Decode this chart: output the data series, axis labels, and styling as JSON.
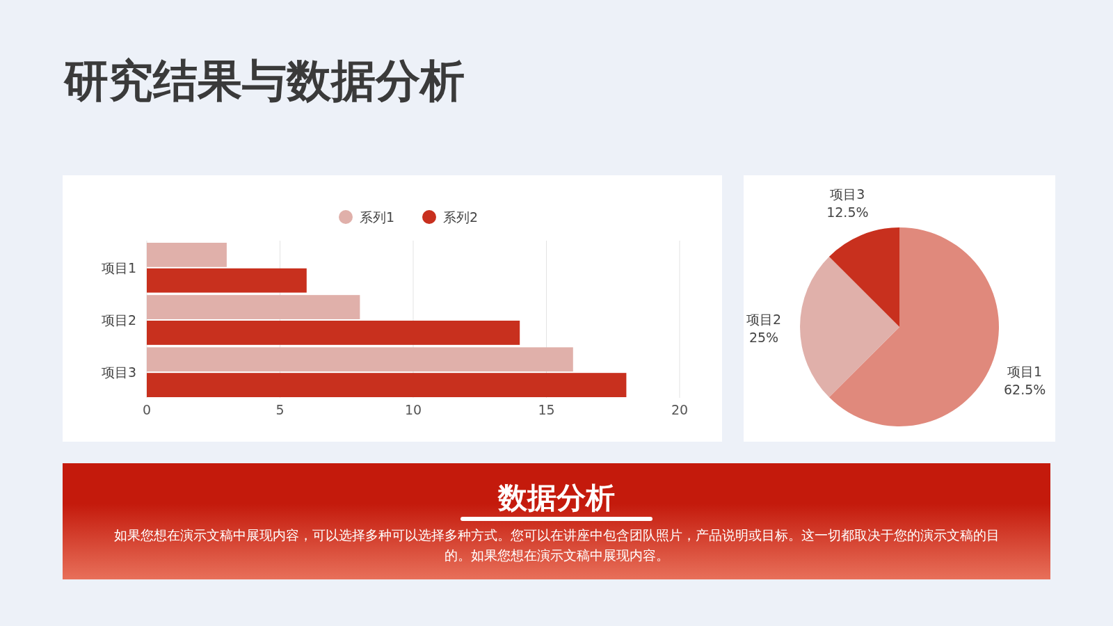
{
  "chart_data": [
    {
      "type": "other",
      "title": "研究结果与数据分析"
    },
    {
      "type": "bar",
      "orientation": "horizontal",
      "categories": [
        "项目1",
        "项目2",
        "项目3"
      ],
      "series": [
        {
          "name": "系列1",
          "color": "#e0b0aa",
          "values": [
            3,
            8,
            16
          ]
        },
        {
          "name": "系列2",
          "color": "#c8301e",
          "values": [
            6,
            14,
            18
          ]
        }
      ],
      "xlim": [
        0,
        20
      ],
      "xticks": [
        0,
        5,
        10,
        15,
        20
      ],
      "grid": "x",
      "legend": "top"
    },
    {
      "type": "pie",
      "categories": [
        "项目1",
        "项目2",
        "项目3"
      ],
      "values": [
        62.5,
        25,
        12.5
      ],
      "colors": [
        "#e0897c",
        "#e0b0aa",
        "#c8301e"
      ],
      "value_labels": [
        "62.5%",
        "25%",
        "12.5%"
      ]
    },
    {
      "type": "other",
      "title": "数据分析",
      "annotations": [
        "如果您想在演示文稿中展现内容，可以选择多种可以选择多种方式。您可以在讲座中包含团队照片，产品说明或目标。这一切都取决于您的演示文稿的目的。如果您想在演示文稿中展现内容。"
      ]
    }
  ]
}
